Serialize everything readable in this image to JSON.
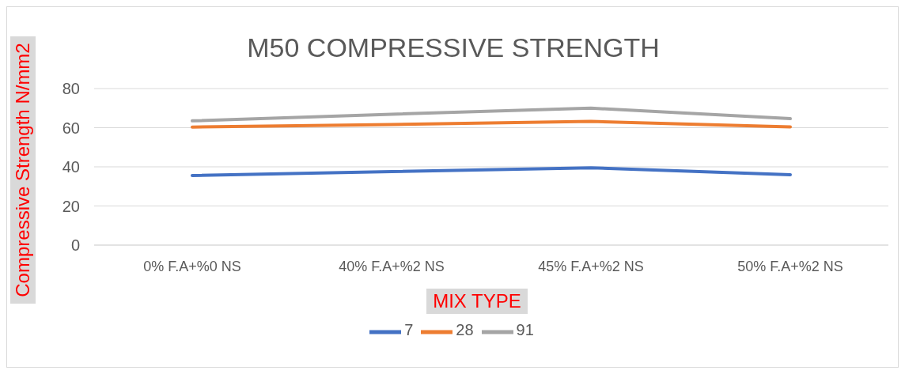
{
  "chart_data": {
    "type": "line",
    "title": "M50 COMPRESSIVE STRENGTH",
    "xlabel": "MIX TYPE",
    "ylabel": "Compressive Strength N/mm2",
    "categories": [
      "0% F.A+%0 NS",
      "40% F.A+%2 NS",
      "45% F.A+%2 NS",
      "50% F.A+%2 NS"
    ],
    "series": [
      {
        "name": "7",
        "color": "#4472c4",
        "values": [
          35.6,
          37.6,
          39.5,
          36
        ]
      },
      {
        "name": "28",
        "color": "#ed7d31",
        "values": [
          60.3,
          61.6,
          63.2,
          60.4
        ]
      },
      {
        "name": "91",
        "color": "#a5a5a5",
        "values": [
          63.5,
          66.9,
          70,
          64.6
        ]
      }
    ],
    "ylim": [
      0,
      80
    ],
    "yticks": [
      0,
      20,
      40,
      60,
      80
    ],
    "grid": "y",
    "legend": "bottom",
    "marker": "none",
    "line_style": "solid"
  }
}
